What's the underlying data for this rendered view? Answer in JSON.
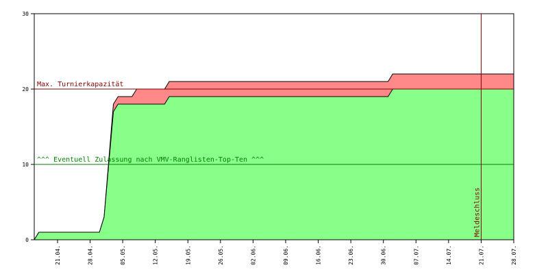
{
  "chart_data": {
    "type": "area",
    "x": [
      "16.04.",
      "17.04.",
      "30.04.",
      "01.05.",
      "03.05.",
      "04.05.",
      "07.05.",
      "08.05.",
      "14.05.",
      "15.05.",
      "01.07.",
      "02.07.",
      "28.07."
    ],
    "series": [
      {
        "color": "#ff8888",
        "values": [
          0,
          1,
          1,
          3,
          18,
          19,
          19,
          20,
          20,
          21,
          21,
          22,
          22
        ]
      },
      {
        "color": "#88ff88",
        "values": [
          0,
          1,
          1,
          3,
          17,
          18,
          18,
          18,
          18,
          19,
          19,
          20,
          20
        ]
      }
    ],
    "xlim": [
      "16.04.",
      "28.07."
    ],
    "xticks": [
      "21.04.",
      "28.04.",
      "05.05.",
      "12.05.",
      "19.05.",
      "26.05.",
      "02.06.",
      "09.06.",
      "16.06.",
      "23.06.",
      "30.06.",
      "07.07.",
      "14.07.",
      "21.07.",
      "28.07."
    ],
    "ylim": [
      0,
      30
    ],
    "yticks": [
      0,
      10,
      20,
      30
    ],
    "hlines": [
      {
        "text": "Max. Turnierkapazität",
        "y": 20,
        "color": "#800000"
      },
      {
        "text": "^^^ Eventuell Zulassung nach VMV-Ranglisten-Top-Ten ^^^",
        "y": 10,
        "color": "#008000"
      }
    ],
    "vline": {
      "text": "Meldeschluss",
      "x": "21.07.",
      "color": "#800000"
    }
  }
}
